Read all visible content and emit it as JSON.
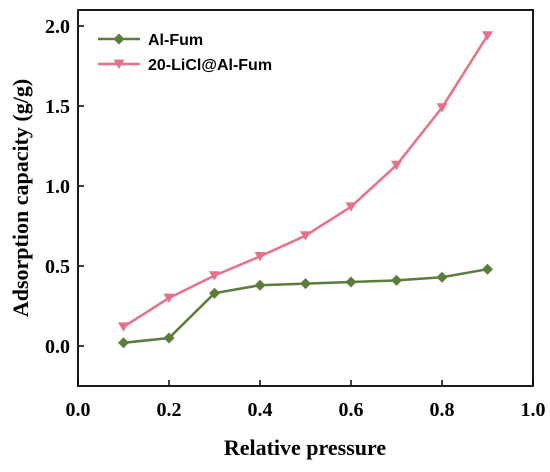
{
  "chart_data": {
    "type": "line",
    "title": "",
    "xlabel": "Relative pressure",
    "ylabel": "Adsorption capacity (g/g)",
    "xlim": [
      0.0,
      1.0
    ],
    "ylim": [
      -0.25,
      2.1
    ],
    "xticks": [
      0.0,
      0.2,
      0.4,
      0.6,
      0.8,
      1.0
    ],
    "xtick_labels": [
      "0.0",
      "0.2",
      "0.4",
      "0.6",
      "0.8",
      "1.0"
    ],
    "yticks": [
      0.0,
      0.5,
      1.0,
      1.5,
      2.0
    ],
    "ytick_labels": [
      "0.0",
      "0.5",
      "1.0",
      "1.5",
      "2.0"
    ],
    "grid": false,
    "legend_position": "top-left",
    "series": [
      {
        "name": "Al-Fum",
        "color": "#5a7d3a",
        "marker": "diamond",
        "x": [
          0.1,
          0.2,
          0.3,
          0.4,
          0.5,
          0.6,
          0.7,
          0.8,
          0.9
        ],
        "y": [
          0.02,
          0.05,
          0.33,
          0.38,
          0.39,
          0.4,
          0.41,
          0.43,
          0.48
        ]
      },
      {
        "name": "20-LiCl@Al-Fum",
        "color": "#e8718a",
        "marker": "triangle-down",
        "x": [
          0.1,
          0.2,
          0.3,
          0.4,
          0.5,
          0.6,
          0.7,
          0.8,
          0.9
        ],
        "y": [
          0.12,
          0.3,
          0.44,
          0.56,
          0.69,
          0.87,
          1.13,
          1.49,
          1.94
        ]
      }
    ]
  }
}
